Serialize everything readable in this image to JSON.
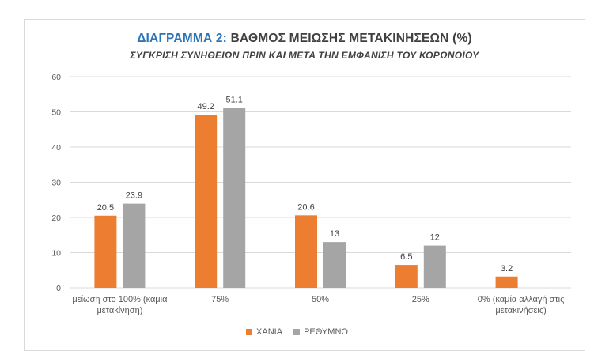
{
  "chart_data": {
    "type": "bar",
    "title_prefix": "ΔΙΑΓΡΑΜΜΑ 2:",
    "title": "ΒΑΘΜΟΣ ΜΕΙΩΣΗΣ ΜΕΤΑΚΙΝΗΣΕΩΝ (%)",
    "subtitle": "ΣΥΓΚΡΙΣΗ ΣΥΝΗΘΕΙΩΝ ΠΡΙΝ ΚΑΙ ΜΕΤΑ ΤΗΝ ΕΜΦΑΝΙΣΗ ΤΟΥ ΚΟΡΩΝΟΪΟΥ",
    "categories": [
      [
        "μείωση στο 100% (καμια",
        "μετακίνηση)"
      ],
      [
        "75%"
      ],
      [
        "50%"
      ],
      [
        "25%"
      ],
      [
        "0%  (καμία αλλαγή στις",
        "μετακινήσεις)"
      ]
    ],
    "series": [
      {
        "name": "ΧΑΝΙΑ",
        "color": "#ed7d31",
        "values": [
          20.5,
          49.2,
          20.6,
          6.5,
          3.2
        ]
      },
      {
        "name": "ΡΕΘΥΜΝΟ",
        "color": "#a5a5a5",
        "values": [
          23.9,
          51.1,
          13,
          12,
          null
        ]
      }
    ],
    "ylim": [
      0,
      60
    ],
    "yticks": [
      0,
      10,
      20,
      30,
      40,
      50,
      60
    ],
    "grid": true,
    "legend_position": "bottom"
  }
}
